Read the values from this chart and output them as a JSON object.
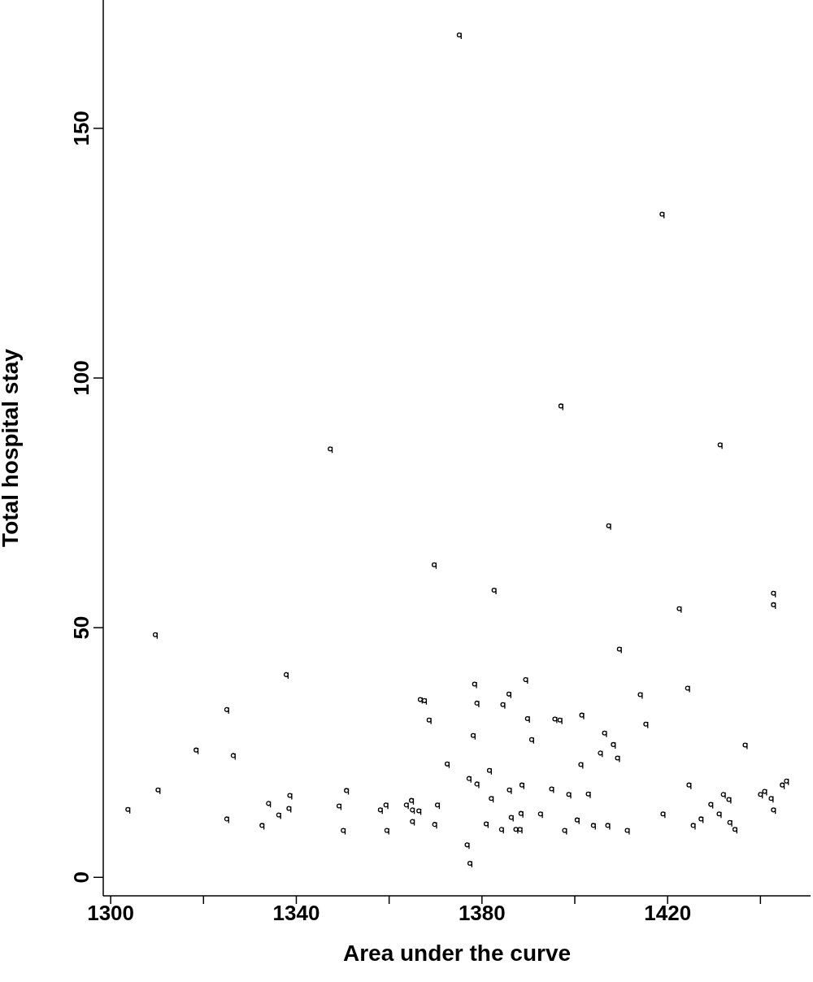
{
  "chart_data": {
    "type": "scatter",
    "xlabel": "Area under the curve",
    "ylabel": "Total hospital stay",
    "color": "#000000",
    "xlim": [
      1298.4,
      1450.8
    ],
    "ylim": [
      -3.7,
      175.7
    ],
    "xticks": [
      1300,
      {
        "value": 1320,
        "label": null
      },
      1340,
      {
        "value": 1360,
        "label": null
      },
      1380,
      {
        "value": 1400,
        "label": null
      },
      1420,
      {
        "value": 1440,
        "label": null
      }
    ],
    "yticks": [
      0,
      50,
      100,
      150
    ],
    "x": [
      1303.7,
      1310.2,
      1309.6,
      1318.4,
      1325.0,
      1326.4,
      1325.0,
      1332.6,
      1334.0,
      1336.2,
      1338.4,
      1338.6,
      1337.8,
      1347.3,
      1349.2,
      1350.8,
      1350.1,
      1358.1,
      1359.3,
      1359.5,
      1363.7,
      1364.8,
      1365.0,
      1366.4,
      1365.0,
      1366.7,
      1367.6,
      1368.6,
      1369.7,
      1370.4,
      1369.8,
      1372.5,
      1375.1,
      1376.8,
      1377.4,
      1377.2,
      1378.1,
      1378.4,
      1378.9,
      1378.9,
      1380.9,
      1381.6,
      1382.0,
      1382.6,
      1384.2,
      1384.5,
      1385.8,
      1385.9,
      1386.3,
      1387.3,
      1388.2,
      1388.4,
      1388.6,
      1389.4,
      1389.8,
      1390.7,
      1392.6,
      1395.0,
      1395.7,
      1396.8,
      1397.0,
      1397.8,
      1398.7,
      1400.5,
      1401.3,
      1401.5,
      1402.9,
      1404.0,
      1405.5,
      1406.4,
      1407.1,
      1407.3,
      1408.3,
      1409.2,
      1409.6,
      1411.3,
      1414.1,
      1415.3,
      1418.8,
      1419.0,
      1422.5,
      1424.3,
      1424.6,
      1425.5,
      1427.2,
      1429.3,
      1431.1,
      1431.3,
      1432.0,
      1433.2,
      1433.4,
      1434.5,
      1436.7,
      1440.0,
      1440.9,
      1442.3,
      1442.8,
      1442.8,
      1442.8,
      1444.7,
      1445.6
    ],
    "values": [
      13.6,
      17.5,
      48.6,
      25.5,
      33.6,
      24.4,
      11.7,
      10.4,
      14.8,
      12.5,
      13.8,
      16.4,
      40.6,
      85.8,
      14.3,
      17.4,
      9.4,
      13.5,
      14.5,
      9.4,
      14.5,
      15.4,
      13.5,
      13.3,
      11.2,
      35.6,
      35.4,
      31.5,
      62.6,
      14.5,
      10.6,
      22.7,
      168.7,
      6.5,
      2.8,
      19.8,
      28.4,
      38.7,
      18.7,
      34.9,
      10.7,
      21.4,
      15.8,
      57.5,
      9.6,
      34.6,
      36.7,
      17.5,
      12.0,
      9.6,
      9.6,
      12.8,
      18.5,
      39.6,
      31.8,
      27.6,
      12.7,
      17.7,
      31.7,
      31.5,
      94.4,
      9.4,
      16.6,
      11.5,
      22.6,
      32.5,
      16.7,
      10.4,
      24.9,
      28.9,
      10.4,
      70.4,
      26.6,
      23.9,
      45.7,
      9.4,
      36.6,
      30.7,
      132.8,
      12.7,
      53.8,
      37.9,
      18.5,
      10.4,
      11.7,
      14.6,
      12.7,
      86.6,
      16.6,
      15.6,
      11.0,
      9.6,
      26.5,
      16.6,
      17.2,
      15.8,
      13.5,
      56.9,
      54.6,
      18.5,
      19.3
    ]
  }
}
